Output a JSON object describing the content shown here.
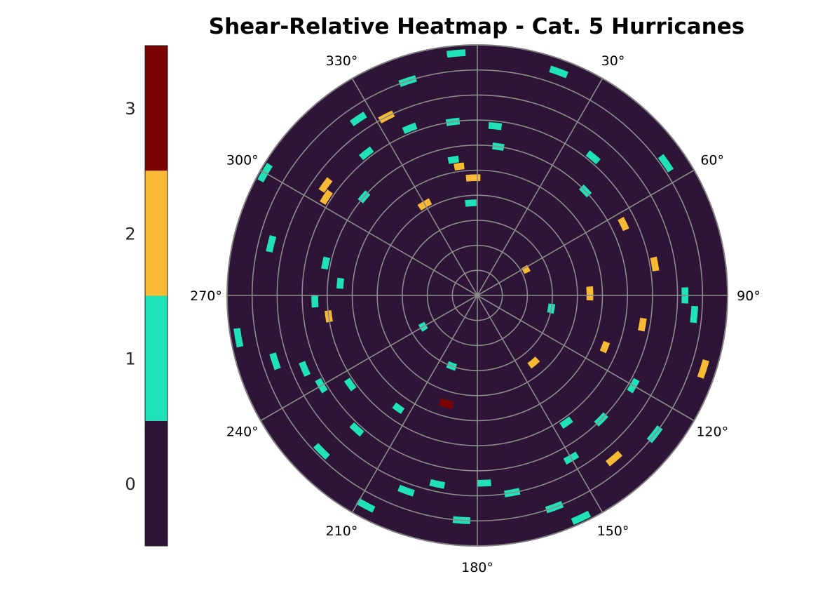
{
  "chart_data": {
    "type": "heatmap",
    "projection": "polar",
    "title": "Shear-Relative Heatmap - Cat. 5 Hurricanes",
    "theta_zero": "top",
    "theta_direction": "clockwise",
    "theta_ticks": [
      0,
      30,
      60,
      90,
      120,
      150,
      180,
      210,
      240,
      270,
      300,
      330
    ],
    "theta_tick_labels": [
      "",
      "30°",
      "60°",
      "90°",
      "120°",
      "150°",
      "180°",
      "210°",
      "240°",
      "270°",
      "300°",
      "330°"
    ],
    "radial_rings": 10,
    "radial_tick_labels_shown": false,
    "grid": true,
    "colorbar": {
      "placement": "left",
      "ticks": [
        0,
        1,
        2,
        3
      ],
      "tick_labels": [
        "0",
        "1",
        "2",
        "3"
      ],
      "range": [
        -0.5,
        3.5
      ]
    },
    "colors": {
      "0": "#2e1437",
      "1": "#1fe2b7",
      "2": "#f8b935",
      "3": "#7a0404",
      "grid": "#8c8c8c",
      "frame": "#808080"
    },
    "cells_note": "theta_deg and radius fraction (0=center,1=edge) with category value",
    "cells": [
      {
        "theta": 355,
        "r": 0.97,
        "v": 1
      },
      {
        "theta": 20,
        "r": 0.95,
        "v": 1
      },
      {
        "theta": 342,
        "r": 0.9,
        "v": 1
      },
      {
        "theta": 326,
        "r": 0.85,
        "v": 1
      },
      {
        "theta": 333,
        "r": 0.8,
        "v": 2
      },
      {
        "theta": 322,
        "r": 0.72,
        "v": 1
      },
      {
        "theta": 338,
        "r": 0.72,
        "v": 1
      },
      {
        "theta": 352,
        "r": 0.7,
        "v": 1
      },
      {
        "theta": 6,
        "r": 0.68,
        "v": 1
      },
      {
        "theta": 8,
        "r": 0.6,
        "v": 1
      },
      {
        "theta": 350,
        "r": 0.55,
        "v": 1
      },
      {
        "theta": 352,
        "r": 0.52,
        "v": 2
      },
      {
        "theta": 358,
        "r": 0.47,
        "v": 2
      },
      {
        "theta": 330,
        "r": 0.42,
        "v": 2
      },
      {
        "theta": 356,
        "r": 0.37,
        "v": 1
      },
      {
        "theta": 300,
        "r": 0.98,
        "v": 1
      },
      {
        "theta": 306,
        "r": 0.75,
        "v": 2
      },
      {
        "theta": 303,
        "r": 0.72,
        "v": 2
      },
      {
        "theta": 311,
        "r": 0.6,
        "v": 1
      },
      {
        "theta": 284,
        "r": 0.85,
        "v": 1
      },
      {
        "theta": 282,
        "r": 0.62,
        "v": 1
      },
      {
        "theta": 268,
        "r": 0.65,
        "v": 1
      },
      {
        "theta": 262,
        "r": 0.6,
        "v": 2
      },
      {
        "theta": 275,
        "r": 0.55,
        "v": 1
      },
      {
        "theta": 260,
        "r": 0.97,
        "v": 1
      },
      {
        "theta": 252,
        "r": 0.85,
        "v": 1
      },
      {
        "theta": 247,
        "r": 0.75,
        "v": 1
      },
      {
        "theta": 240,
        "r": 0.72,
        "v": 1
      },
      {
        "theta": 235,
        "r": 0.62,
        "v": 1
      },
      {
        "theta": 225,
        "r": 0.88,
        "v": 1
      },
      {
        "theta": 222,
        "r": 0.72,
        "v": 1
      },
      {
        "theta": 215,
        "r": 0.55,
        "v": 1
      },
      {
        "theta": 208,
        "r": 0.95,
        "v": 1
      },
      {
        "theta": 200,
        "r": 0.83,
        "v": 1
      },
      {
        "theta": 192,
        "r": 0.77,
        "v": 1
      },
      {
        "theta": 184,
        "r": 0.9,
        "v": 1
      },
      {
        "theta": 178,
        "r": 0.75,
        "v": 1
      },
      {
        "theta": 170,
        "r": 0.8,
        "v": 1
      },
      {
        "theta": 196,
        "r": 0.45,
        "v": 3
      },
      {
        "theta": 160,
        "r": 0.9,
        "v": 1
      },
      {
        "theta": 155,
        "r": 0.98,
        "v": 1
      },
      {
        "theta": 150,
        "r": 0.75,
        "v": 1
      },
      {
        "theta": 145,
        "r": 0.62,
        "v": 1
      },
      {
        "theta": 140,
        "r": 0.85,
        "v": 2
      },
      {
        "theta": 135,
        "r": 0.7,
        "v": 1
      },
      {
        "theta": 128,
        "r": 0.9,
        "v": 1
      },
      {
        "theta": 120,
        "r": 0.72,
        "v": 1
      },
      {
        "theta": 112,
        "r": 0.55,
        "v": 2
      },
      {
        "theta": 108,
        "r": 0.95,
        "v": 2
      },
      {
        "theta": 100,
        "r": 0.67,
        "v": 2
      },
      {
        "theta": 95,
        "r": 0.87,
        "v": 1
      },
      {
        "theta": 90,
        "r": 0.83,
        "v": 1
      },
      {
        "theta": 89,
        "r": 0.45,
        "v": 2
      },
      {
        "theta": 80,
        "r": 0.72,
        "v": 2
      },
      {
        "theta": 64,
        "r": 0.65,
        "v": 2
      },
      {
        "theta": 55,
        "r": 0.92,
        "v": 1
      },
      {
        "theta": 46,
        "r": 0.6,
        "v": 1
      },
      {
        "theta": 40,
        "r": 0.72,
        "v": 1
      },
      {
        "theta": 62,
        "r": 0.22,
        "v": 2
      },
      {
        "theta": 140,
        "r": 0.35,
        "v": 2
      },
      {
        "theta": 100,
        "r": 0.3,
        "v": 1
      },
      {
        "theta": 200,
        "r": 0.3,
        "v": 1
      },
      {
        "theta": 240,
        "r": 0.25,
        "v": 1
      }
    ]
  }
}
